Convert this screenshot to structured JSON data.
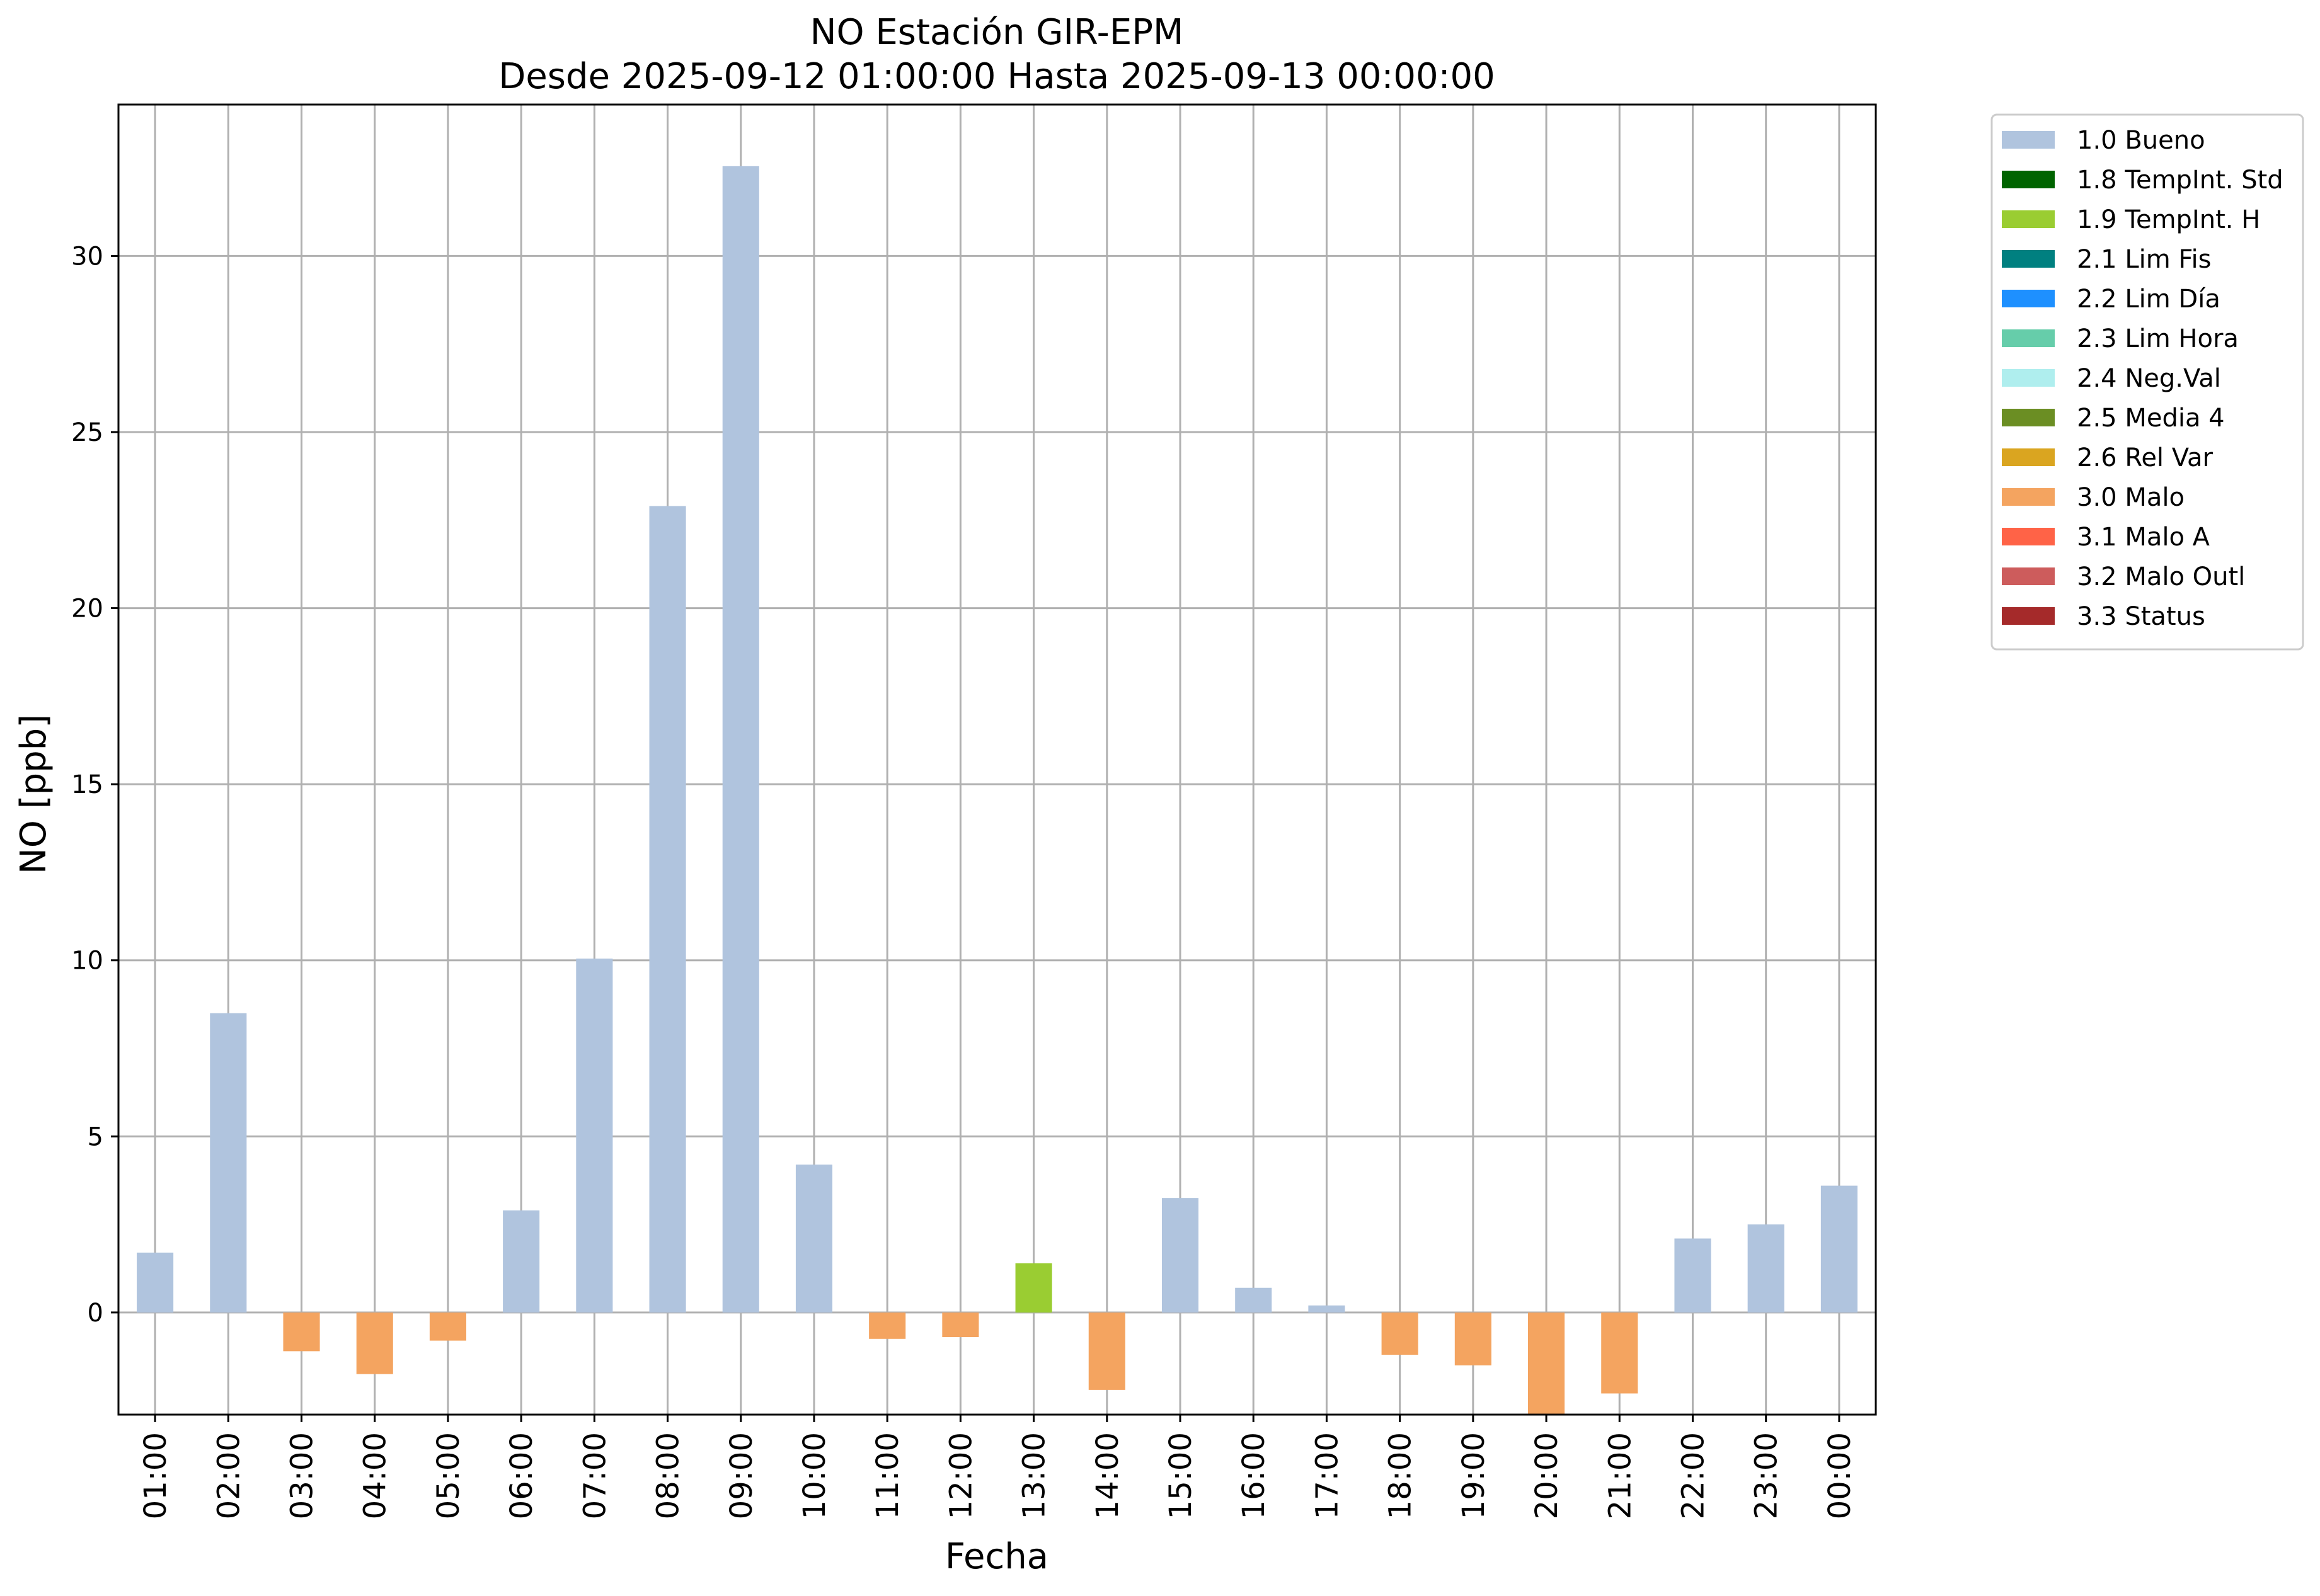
{
  "chart_data": {
    "type": "bar",
    "title": "NO Estación GIR-EPM",
    "subtitle": "Desde 2025-09-12 01:00:00 Hasta 2025-09-13 00:00:00",
    "xlabel": "Fecha",
    "ylabel": "NO [ppb]",
    "ylim": [
      -2.9,
      34.3
    ],
    "yticks": [
      0,
      5,
      10,
      15,
      20,
      25,
      30
    ],
    "grid": true,
    "legend_position": "outside-top-right",
    "categories": [
      "01:00",
      "02:00",
      "03:00",
      "04:00",
      "05:00",
      "06:00",
      "07:00",
      "08:00",
      "09:00",
      "10:00",
      "11:00",
      "12:00",
      "13:00",
      "14:00",
      "15:00",
      "16:00",
      "17:00",
      "18:00",
      "19:00",
      "20:00",
      "21:00",
      "22:00",
      "23:00",
      "00:00"
    ],
    "values": [
      1.7,
      8.5,
      -1.1,
      -1.75,
      -0.8,
      2.9,
      10.05,
      22.9,
      32.55,
      4.2,
      -0.75,
      -0.7,
      1.4,
      -2.2,
      3.25,
      0.7,
      0.2,
      -1.2,
      -1.5,
      -2.9,
      -2.3,
      2.1,
      2.5,
      3.6
    ],
    "flags": [
      "1.0 Bueno",
      "1.0 Bueno",
      "3.0 Malo",
      "3.0 Malo",
      "3.0 Malo",
      "1.0 Bueno",
      "1.0 Bueno",
      "1.0 Bueno",
      "1.0 Bueno",
      "1.0 Bueno",
      "3.0 Malo",
      "3.0 Malo",
      "1.9 TempInt. H",
      "3.0 Malo",
      "1.0 Bueno",
      "1.0 Bueno",
      "1.0 Bueno",
      "3.0 Malo",
      "3.0 Malo",
      "3.0 Malo",
      "3.0 Malo",
      "1.0 Bueno",
      "1.0 Bueno",
      "1.0 Bueno"
    ],
    "legend": [
      {
        "label": "1.0 Bueno",
        "color": "#b0c4de"
      },
      {
        "label": "1.8 TempInt. Std",
        "color": "#006400"
      },
      {
        "label": "1.9 TempInt. H",
        "color": "#9acd32"
      },
      {
        "label": "2.1 Lim Fis",
        "color": "#008080"
      },
      {
        "label": "2.2 Lim Día",
        "color": "#1e90ff"
      },
      {
        "label": "2.3 Lim Hora",
        "color": "#66cdaa"
      },
      {
        "label": "2.4 Neg.Val",
        "color": "#afeeee"
      },
      {
        "label": "2.5 Media 4",
        "color": "#6b8e23"
      },
      {
        "label": "2.6 Rel Var",
        "color": "#daa520"
      },
      {
        "label": "3.0 Malo",
        "color": "#f4a460"
      },
      {
        "label": "3.1 Malo A",
        "color": "#ff6347"
      },
      {
        "label": "3.2 Malo Outl",
        "color": "#cd5c5c"
      },
      {
        "label": "3.3 Status",
        "color": "#a52a2a"
      }
    ]
  }
}
